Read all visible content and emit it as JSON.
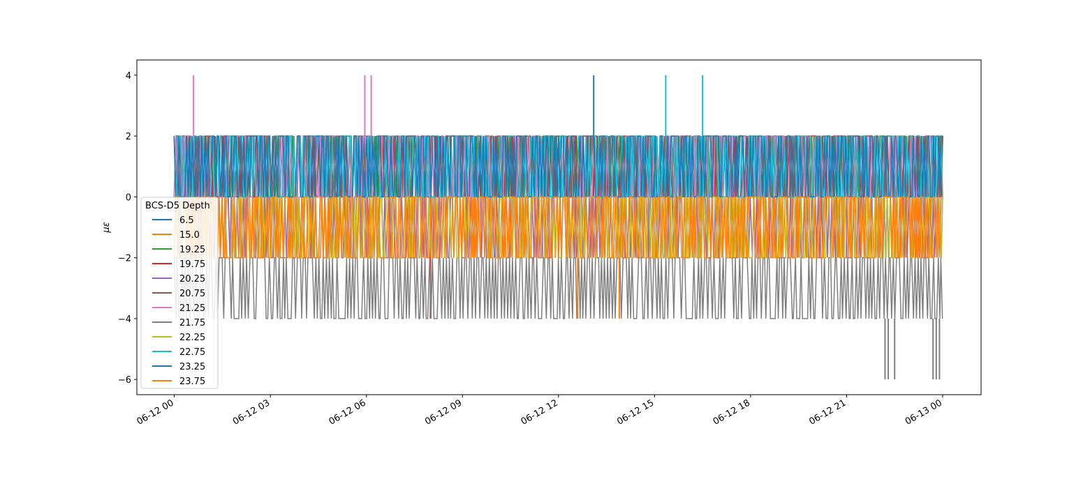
{
  "chart_data": {
    "type": "line",
    "title": "",
    "xlabel": "",
    "ylabel": "με",
    "ylim": [
      -6.5,
      4.5
    ],
    "y_ticks": [
      4,
      2,
      0,
      -2,
      -4,
      -6
    ],
    "y_tick_labels": [
      "4",
      "2",
      "0",
      "−2",
      "−4",
      "−6"
    ],
    "x_ticks": [
      "06-12 00",
      "06-12 03",
      "06-12 06",
      "06-12 09",
      "06-12 12",
      "06-12 15",
      "06-12 18",
      "06-12 21",
      "06-13 00"
    ],
    "x_tick_hours": [
      0,
      3,
      6,
      9,
      12,
      15,
      18,
      21,
      24
    ],
    "xlim_hours": [
      -1.17,
      25.2
    ],
    "data_range_hours": [
      0,
      24
    ],
    "grid": false,
    "legend": {
      "title": "BCS-D5 Depth",
      "placement": "center-left"
    },
    "series": [
      {
        "name": "6.5",
        "color": "#1f77b4",
        "levels": [
          0,
          2
        ],
        "spikes": [
          {
            "t": 13.1,
            "v": 4
          }
        ]
      },
      {
        "name": "15.0",
        "color": "#ff7f0e",
        "levels": [
          -2,
          0
        ],
        "spikes": []
      },
      {
        "name": "19.25",
        "color": "#2ca02c",
        "levels": [
          0,
          2
        ],
        "spikes": []
      },
      {
        "name": "19.75",
        "color": "#d62728",
        "levels": [
          0,
          2
        ],
        "spikes": [
          {
            "t": 8.0,
            "v": -4
          }
        ]
      },
      {
        "name": "20.25",
        "color": "#9467bd",
        "levels": [
          -2,
          0
        ],
        "spikes": []
      },
      {
        "name": "20.75",
        "color": "#8c564b",
        "levels": [
          0,
          2
        ],
        "spikes": []
      },
      {
        "name": "21.25",
        "color": "#e377c2",
        "levels": [
          0,
          2
        ],
        "spikes": [
          {
            "t": 0.6,
            "v": 4
          },
          {
            "t": 5.95,
            "v": 4
          },
          {
            "t": 6.15,
            "v": 4
          }
        ]
      },
      {
        "name": "21.75",
        "color": "#7f7f7f",
        "levels": [
          -4,
          -2
        ],
        "spikes": [
          {
            "t": 22.2,
            "v": -6
          },
          {
            "t": 22.3,
            "v": -6
          },
          {
            "t": 22.5,
            "v": -6
          },
          {
            "t": 23.7,
            "v": -6
          },
          {
            "t": 23.8,
            "v": -6
          },
          {
            "t": 23.9,
            "v": -6
          }
        ]
      },
      {
        "name": "22.25",
        "color": "#bcbd22",
        "levels": [
          -2,
          0
        ],
        "spikes": []
      },
      {
        "name": "22.75",
        "color": "#17becf",
        "levels": [
          0,
          2
        ],
        "spikes": [
          {
            "t": 15.35,
            "v": 4
          },
          {
            "t": 16.5,
            "v": 4
          }
        ]
      },
      {
        "name": "23.25",
        "color": "#1f77b4",
        "levels": [
          0,
          2
        ],
        "spikes": []
      },
      {
        "name": "23.75",
        "color": "#ff7f0e",
        "levels": [
          -2,
          0
        ],
        "spikes": [
          {
            "t": 12.6,
            "v": -4
          },
          {
            "t": 13.9,
            "v": -4
          }
        ]
      }
    ]
  }
}
